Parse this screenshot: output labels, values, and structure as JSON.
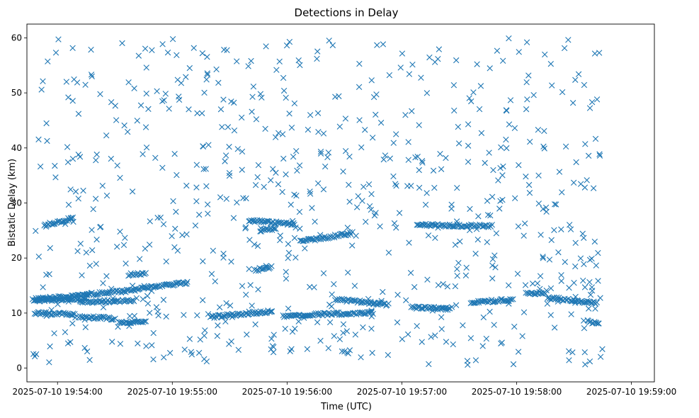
{
  "chart_data": {
    "type": "scatter",
    "title": "Detections in Delay",
    "xlabel": "Time (UTC)",
    "ylabel": "Bistatic Delay (km)",
    "x_tick_labels": [
      "2025-07-10 19:54:00",
      "2025-07-10 19:55:00",
      "2025-07-10 19:56:00",
      "2025-07-10 19:57:00",
      "2025-07-10 19:58:00",
      "2025-07-10 19:59:00"
    ],
    "x_ticks": [
      "19:54:00",
      "19:55:00",
      "19:56:00",
      "19:57:00",
      "19:58:00",
      "19:59:00"
    ],
    "y_ticks": [
      0,
      10,
      20,
      30,
      40,
      50,
      60
    ],
    "xlim": [
      "19:53:44",
      "19:59:12"
    ],
    "ylim": [
      -2.5,
      62.5
    ],
    "marker": "x",
    "color": "#1f77b4",
    "grid": false,
    "series": [
      {
        "tracks": [
          {
            "start": [
              "19:53:47",
              12.3
            ],
            "end": [
              "19:54:15",
              12.6
            ]
          },
          {
            "start": [
              "19:53:48",
              12.5
            ],
            "end": [
              "19:54:35",
              14.0
            ]
          },
          {
            "start": [
              "19:54:35",
              14.0
            ],
            "end": [
              "19:55:08",
              15.6
            ]
          },
          {
            "start": [
              "19:53:48",
              10.0
            ],
            "end": [
              "19:54:09",
              9.8
            ]
          },
          {
            "start": [
              "19:54:12",
              12.0
            ],
            "end": [
              "19:54:40",
              12.3
            ]
          },
          {
            "start": [
              "19:54:11",
              9.3
            ],
            "end": [
              "19:54:30",
              9.0
            ]
          },
          {
            "start": [
              "19:54:32",
              8.2
            ],
            "end": [
              "19:54:46",
              8.5
            ]
          },
          {
            "start": [
              "19:53:53",
              26.0
            ],
            "end": [
              "19:54:08",
              27.2
            ]
          },
          {
            "start": [
              "19:55:20",
              9.3
            ],
            "end": [
              "19:55:52",
              10.3
            ]
          },
          {
            "start": [
              "19:55:58",
              9.5
            ],
            "end": [
              "19:56:45",
              10.1
            ]
          },
          {
            "start": [
              "19:55:40",
              26.8
            ],
            "end": [
              "19:56:04",
              26.2
            ]
          },
          {
            "start": [
              "19:56:07",
              23.0
            ],
            "end": [
              "19:56:34",
              24.5
            ]
          },
          {
            "start": [
              "19:56:26",
              12.5
            ],
            "end": [
              "19:56:53",
              11.5
            ]
          },
          {
            "start": [
              "19:57:08",
              26.0
            ],
            "end": [
              "19:57:47",
              25.8
            ]
          },
          {
            "start": [
              "19:57:05",
              11.0
            ],
            "end": [
              "19:57:25",
              10.8
            ]
          },
          {
            "start": [
              "19:57:36",
              12.0
            ],
            "end": [
              "19:57:58",
              12.4
            ]
          },
          {
            "start": [
              "19:58:05",
              13.5
            ],
            "end": [
              "19:58:15",
              13.7
            ]
          },
          {
            "start": [
              "19:58:16",
              12.8
            ],
            "end": [
              "19:58:42",
              11.8
            ]
          },
          {
            "start": [
              "19:58:37",
              8.5
            ],
            "end": [
              "19:58:43",
              8.0
            ]
          },
          {
            "start": [
              "19:55:43",
              17.8
            ],
            "end": [
              "19:55:52",
              18.4
            ]
          },
          {
            "start": [
              "19:54:37",
              17.0
            ],
            "end": [
              "19:54:46",
              17.2
            ]
          },
          {
            "start": [
              "19:55:46",
              25.0
            ],
            "end": [
              "19:55:54",
              25.3
            ]
          }
        ],
        "clutter": {
          "time_range": [
            "19:53:47",
            "19:58:45"
          ],
          "delay_range": [
            0.5,
            60
          ]
        }
      }
    ]
  }
}
